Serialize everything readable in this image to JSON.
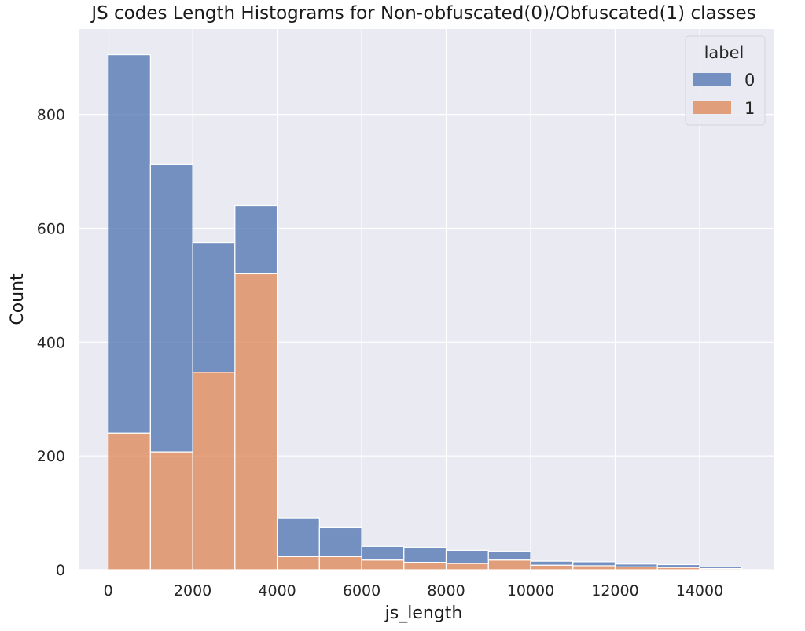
{
  "chart_data": {
    "type": "bar",
    "title": "JS codes Length Histograms for Non-obfuscated(0)/Obfuscated(1) classes",
    "xlabel": "js_length",
    "ylabel": "Count",
    "xlim": [
      -700,
      15750
    ],
    "ylim": [
      0,
      950
    ],
    "xticks": [
      0,
      2000,
      4000,
      6000,
      8000,
      10000,
      12000,
      14000
    ],
    "yticks": [
      0,
      200,
      400,
      600,
      800
    ],
    "grid": true,
    "stacked": true,
    "bin_edges": [
      0,
      1000,
      2000,
      3000,
      4000,
      5000,
      6000,
      7000,
      8000,
      9000,
      10000,
      11000,
      12000,
      13000,
      14000,
      15000
    ],
    "legend": {
      "title": "label",
      "position": "top-right"
    },
    "series": [
      {
        "name": "1",
        "color": "#dd8452",
        "values": [
          240,
          207,
          347,
          520,
          23,
          23,
          17,
          13,
          11,
          17,
          8,
          7,
          5,
          4,
          2
        ]
      },
      {
        "name": "0",
        "color": "#4c72b0",
        "values": [
          665,
          505,
          228,
          120,
          68,
          51,
          24,
          26,
          23,
          15,
          7,
          7,
          5,
          5,
          3
        ]
      }
    ],
    "legend_order": [
      "0",
      "1"
    ]
  },
  "colors": {
    "plot_background": "#eaeaf2",
    "grid": "#ffffff"
  }
}
